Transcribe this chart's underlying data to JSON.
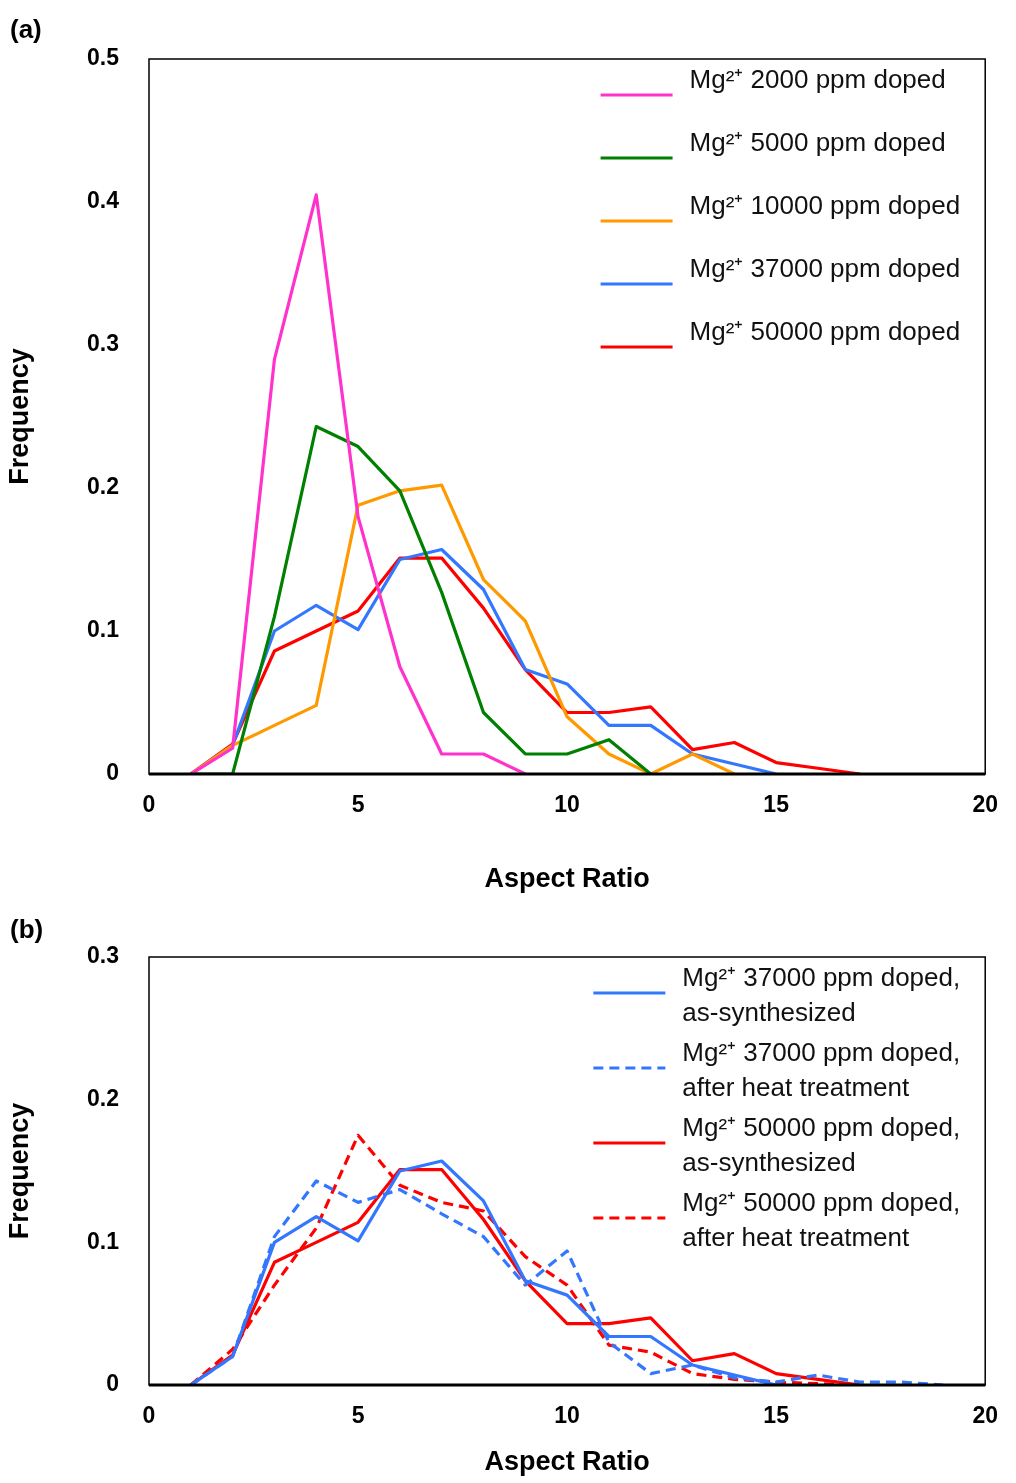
{
  "chart_data": [
    {
      "type": "line",
      "annotations": [
        "(a)"
      ],
      "xlabel": "Aspect Ratio",
      "ylabel": "Frequency",
      "xlim": [
        0,
        20
      ],
      "xticks": [
        0,
        5,
        10,
        15,
        20
      ],
      "ylim": [
        0,
        0.5
      ],
      "yticks": [
        0,
        0.1,
        0.2,
        0.3,
        0.4,
        0.5
      ],
      "grid": false,
      "legend": "top right",
      "marker": "none",
      "series": [
        {
          "name": "Mg²⁺ 2000 ppm doped",
          "color": "#ff33cc",
          "x": [
            1,
            2,
            3,
            4,
            5,
            6,
            7,
            8,
            9
          ],
          "values": [
            0,
            0.018,
            0.29,
            0.405,
            0.18,
            0.075,
            0.014,
            0.014,
            0
          ]
        },
        {
          "name": "Mg²⁺ 5000 ppm doped",
          "color": "#008000",
          "x": [
            1,
            2,
            3,
            4,
            5,
            6,
            7,
            8,
            9,
            10,
            11,
            12
          ],
          "values": [
            0,
            0,
            0.11,
            0.243,
            0.229,
            0.198,
            0.127,
            0.043,
            0.014,
            0.014,
            0.024,
            0
          ]
        },
        {
          "name": "Mg²⁺ 10000 ppm doped",
          "color": "#ff9900",
          "x": [
            1,
            2,
            3,
            4,
            5,
            6,
            7,
            8,
            9,
            10,
            11,
            12,
            13,
            14
          ],
          "values": [
            0,
            0.02,
            0.034,
            0.048,
            0.188,
            0.198,
            0.202,
            0.136,
            0.107,
            0.04,
            0.014,
            0,
            0.014,
            0
          ]
        },
        {
          "name": "Mg²⁺ 37000 ppm doped",
          "color": "#3377ff",
          "x": [
            1,
            2,
            3,
            4,
            5,
            6,
            7,
            8,
            9,
            10,
            11,
            12,
            13,
            14,
            15
          ],
          "values": [
            0,
            0.02,
            0.1,
            0.118,
            0.101,
            0.15,
            0.157,
            0.129,
            0.073,
            0.063,
            0.034,
            0.034,
            0.014,
            0.007,
            0
          ]
        },
        {
          "name": "Mg²⁺ 50000 ppm doped",
          "color": "#ff0000",
          "x": [
            1,
            2,
            3,
            4,
            5,
            6,
            7,
            8,
            9,
            10,
            11,
            12,
            13,
            14,
            15,
            16,
            17
          ],
          "values": [
            0,
            0.021,
            0.086,
            0.1,
            0.114,
            0.151,
            0.151,
            0.116,
            0.073,
            0.043,
            0.043,
            0.047,
            0.017,
            0.022,
            0.008,
            0.004,
            0
          ]
        }
      ]
    },
    {
      "type": "line",
      "annotations": [
        "(b)"
      ],
      "xlabel": "Aspect Ratio",
      "ylabel": "Frequency",
      "xlim": [
        0,
        20
      ],
      "xticks": [
        0,
        5,
        10,
        15,
        20
      ],
      "ylim": [
        0,
        0.3
      ],
      "yticks": [
        0,
        0.1,
        0.2,
        0.3
      ],
      "grid": false,
      "legend": "top right",
      "marker": "none",
      "series": [
        {
          "name": "Mg²⁺ 37000 ppm doped, as-synthesized",
          "color": "#3377ff",
          "line_style": "solid",
          "x": [
            1,
            2,
            3,
            4,
            5,
            6,
            7,
            8,
            9,
            10,
            11,
            12,
            13,
            14,
            15
          ],
          "values": [
            0,
            0.02,
            0.1,
            0.118,
            0.101,
            0.15,
            0.157,
            0.129,
            0.073,
            0.063,
            0.034,
            0.034,
            0.014,
            0.007,
            0
          ]
        },
        {
          "name": "Mg²⁺ 37000 ppm doped, after heat treatment",
          "color": "#3377ff",
          "line_style": "dashed",
          "x": [
            1,
            2,
            3,
            4,
            5,
            6,
            7,
            8,
            9,
            10,
            11,
            12,
            13,
            14,
            15,
            16,
            17,
            18,
            19
          ],
          "values": [
            0,
            0.02,
            0.104,
            0.143,
            0.128,
            0.137,
            0.12,
            0.104,
            0.07,
            0.094,
            0.03,
            0.008,
            0.014,
            0.005,
            0.002,
            0.007,
            0.002,
            0.002,
            0
          ]
        },
        {
          "name": "Mg²⁺ 50000 ppm doped, as-synthesized",
          "color": "#ff0000",
          "line_style": "solid",
          "x": [
            1,
            2,
            3,
            4,
            5,
            6,
            7,
            8,
            9,
            10,
            11,
            12,
            13,
            14,
            15,
            16,
            17
          ],
          "values": [
            0,
            0.021,
            0.086,
            0.1,
            0.114,
            0.151,
            0.151,
            0.116,
            0.073,
            0.043,
            0.043,
            0.047,
            0.017,
            0.022,
            0.008,
            0.004,
            0
          ]
        },
        {
          "name": "Mg²⁺ 50000 ppm doped, after heat treatment",
          "color": "#ff0000",
          "line_style": "dashed",
          "x": [
            1,
            2,
            3,
            4,
            5,
            6,
            7,
            8,
            9,
            10,
            11,
            12,
            13,
            14,
            15,
            16,
            17
          ],
          "values": [
            0,
            0.025,
            0.07,
            0.11,
            0.175,
            0.14,
            0.128,
            0.122,
            0.09,
            0.07,
            0.028,
            0.023,
            0.008,
            0.004,
            0.002,
            0.001,
            0
          ]
        }
      ]
    }
  ]
}
